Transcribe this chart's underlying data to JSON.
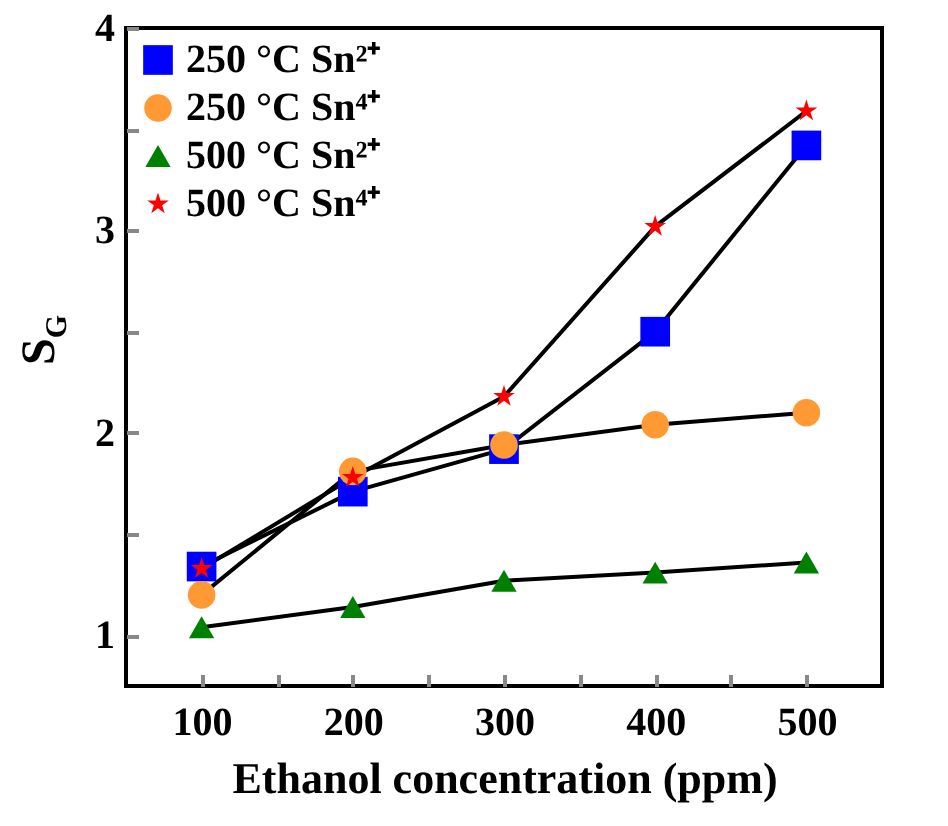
{
  "chart_data": {
    "type": "line",
    "xlabel": "Ethanol concentration (ppm)",
    "ylabel": "S$_{G}$",
    "x": [
      100,
      200,
      300,
      400,
      500
    ],
    "series": [
      {
        "name": "250 °C Sn²⁺",
        "color": "#0000ff",
        "marker": "square",
        "values": [
          1.34,
          1.71,
          1.92,
          2.5,
          3.42
        ]
      },
      {
        "name": "250 °C Sn⁴⁺",
        "color": "#ff9933",
        "marker": "circle",
        "values": [
          1.2,
          1.81,
          1.94,
          2.04,
          2.1
        ]
      },
      {
        "name": "500 °C Sn²⁺",
        "color": "#008000",
        "marker": "triangle",
        "values": [
          1.04,
          1.14,
          1.27,
          1.31,
          1.36
        ]
      },
      {
        "name": "500 °C Sn⁴⁺",
        "color": "#ff0000",
        "marker": "star",
        "values": [
          1.33,
          1.78,
          2.18,
          3.02,
          3.59
        ]
      }
    ],
    "xlim": [
      50,
      550
    ],
    "ylim": [
      0.75,
      4
    ],
    "xticks": [
      100,
      {
        "value": 150,
        "label": null
      },
      200,
      {
        "value": 250,
        "label": null
      },
      300,
      {
        "value": 350,
        "label": null
      },
      400,
      {
        "value": 450,
        "label": null
      },
      500
    ],
    "yticks": [
      1,
      {
        "value": 1.5,
        "label": null
      },
      2,
      {
        "value": 2.5,
        "label": null
      },
      3,
      {
        "value": 3.5,
        "label": null
      },
      4
    ],
    "legend": "top left",
    "grid": false,
    "line_style": "solid"
  }
}
